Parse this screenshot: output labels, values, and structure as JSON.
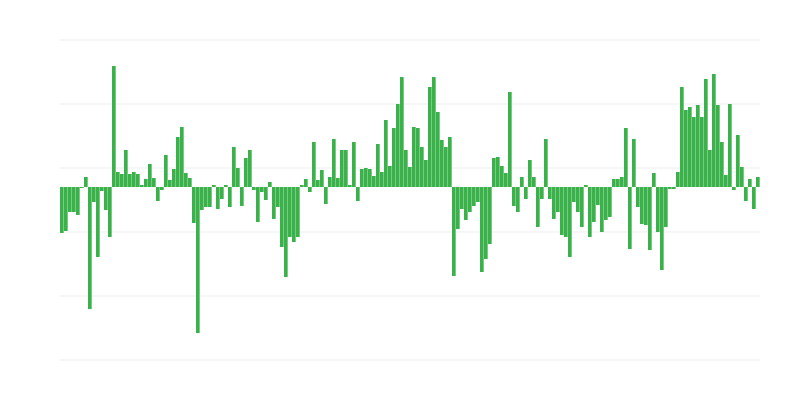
{
  "chart_data": {
    "type": "bar",
    "title": "",
    "xlabel": "",
    "ylabel": "",
    "ylim": [
      -173,
      147
    ],
    "grid_step": 64,
    "grid": true,
    "legend": "none",
    "bar_color": "#39b24a",
    "grid_color": "#ececec",
    "values": [
      -46,
      -44,
      -25,
      -25,
      -28,
      0,
      10,
      -122,
      -15,
      -70,
      -4,
      -23,
      -50,
      121,
      15,
      13,
      37,
      13,
      15,
      13,
      2,
      8,
      23,
      9,
      -14,
      -3,
      32,
      7,
      18,
      50,
      60,
      14,
      9,
      -36,
      -146,
      -23,
      -20,
      -20,
      2,
      -22,
      -12,
      2,
      -20,
      40,
      19,
      -19,
      29,
      37,
      -3,
      -35,
      -5,
      -13,
      5,
      -32,
      -20,
      -60,
      -90,
      -50,
      -55,
      -50,
      2,
      8,
      -5,
      45,
      7,
      17,
      -17,
      10,
      48,
      9,
      37,
      37,
      2,
      45,
      -14,
      18,
      19,
      18,
      11,
      43,
      15,
      67,
      21,
      59,
      83,
      110,
      37,
      20,
      60,
      59,
      40,
      27,
      100,
      110,
      75,
      47,
      40,
      50,
      -89,
      -42,
      -22,
      -33,
      -25,
      -19,
      -15,
      -85,
      -72,
      -57,
      29,
      30,
      21,
      14,
      95,
      -19,
      -25,
      10,
      -12,
      27,
      10,
      -40,
      -12,
      48,
      -12,
      -32,
      -25,
      -48,
      -50,
      -70,
      -15,
      -25,
      -40,
      2,
      -50,
      -35,
      -18,
      -45,
      -33,
      -30,
      8,
      8,
      10,
      59,
      -62,
      48,
      -20,
      -37,
      -38,
      -63,
      14,
      -45,
      -83,
      -40,
      -2,
      -2,
      15,
      100,
      77,
      80,
      70,
      82,
      70,
      108,
      37,
      113,
      82,
      45,
      12,
      83,
      -3,
      52,
      20,
      -14,
      8,
      -22,
      10
    ]
  }
}
